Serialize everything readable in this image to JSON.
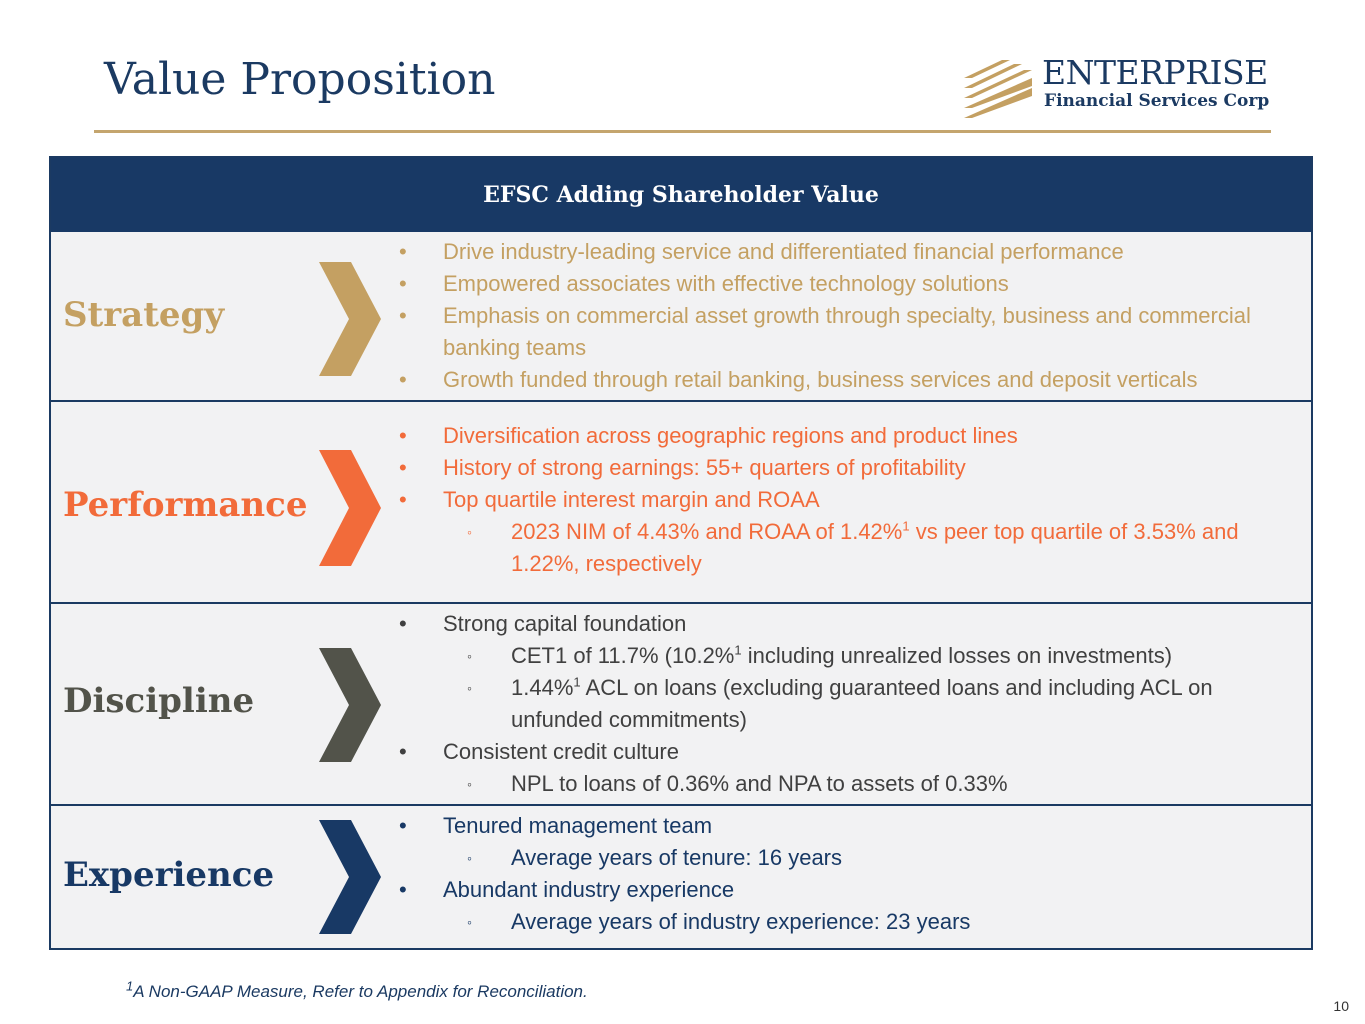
{
  "page": {
    "title": "Value Proposition",
    "page_number": "10",
    "footnote_marker": "1",
    "footnote": "A Non-GAAP Measure, Refer to Appendix for Reconciliation."
  },
  "logo": {
    "name": "ENTERPRISE",
    "subtitle": "Financial Services Corp",
    "mark_icon": "gold-stripes-logo-mark"
  },
  "colors": {
    "navy": "#183965",
    "gold": "#c4a062",
    "orange": "#f26b3a",
    "gray": "#52534a"
  },
  "panel": {
    "header": "EFSC Adding Shareholder Value",
    "sections": [
      {
        "label": "Strategy",
        "color": "#c4a062",
        "items": [
          {
            "text": "Drive industry-leading service and differentiated financial performance"
          },
          {
            "text": "Empowered associates with effective technology solutions"
          },
          {
            "text": "Emphasis on commercial asset growth through specialty, business and commercial banking teams"
          },
          {
            "text": "Growth funded through retail banking, business services and deposit verticals"
          }
        ]
      },
      {
        "label": "Performance",
        "color": "#f26b3a",
        "items": [
          {
            "text": "Diversification across geographic regions and product lines"
          },
          {
            "text": "History of strong earnings: 55+ quarters of profitability"
          },
          {
            "text": "Top quartile interest margin and ROAA"
          }
        ],
        "subitem": {
          "pre": "2023 NIM of 4.43% and ROAA of 1.42%",
          "sup": "1",
          "post": " vs peer top quartile of 3.53% and 1.22%, respectively"
        }
      },
      {
        "label": "Discipline",
        "color": "#52534a",
        "item1": "Strong capital foundation",
        "sub1": {
          "pre": "CET1 of 11.7% (10.2%",
          "sup": "1",
          "post": " including unrealized losses on investments)"
        },
        "sub2": {
          "pre": "1.44%",
          "sup": "1",
          "post": " ACL on loans (excluding guaranteed loans and including ACL on unfunded commitments)"
        },
        "item2": "Consistent credit culture",
        "sub3": "NPL to loans of 0.36% and NPA to assets of 0.33%"
      },
      {
        "label": "Experience",
        "color": "#183965",
        "item1": "Tenured management team",
        "sub1": "Average years of tenure: 16 years",
        "item2": "Abundant industry experience",
        "sub2": "Average years of industry experience: 23 years"
      }
    ]
  }
}
